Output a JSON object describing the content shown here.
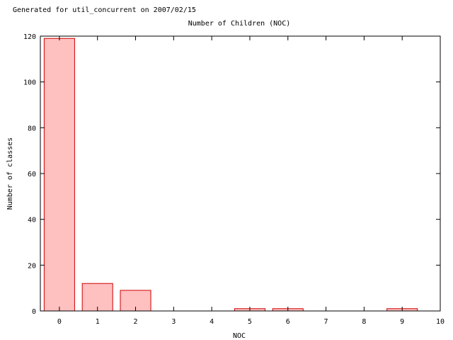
{
  "header": {
    "generated_note": "Generated for util_concurrent on 2007/02/15"
  },
  "chart_data": {
    "type": "bar",
    "title": "Number of Children (NOC)",
    "xlabel": "NOC",
    "ylabel": "Number of classes",
    "x": [
      0,
      1,
      2,
      3,
      4,
      5,
      6,
      7,
      8,
      9
    ],
    "values": [
      119,
      12,
      9,
      0,
      0,
      1,
      1,
      0,
      0,
      1
    ],
    "xlim": [
      -0.5,
      10
    ],
    "ylim": [
      0,
      120
    ],
    "x_ticks": [
      "0",
      "1",
      "2",
      "3",
      "4",
      "5",
      "6",
      "7",
      "8",
      "9",
      "10"
    ],
    "y_ticks": [
      "0",
      "20",
      "40",
      "60",
      "80",
      "100",
      "120"
    ],
    "grid": false,
    "legend": "none",
    "colors": {
      "bar_fill": "#ffc0c0",
      "bar_edge": "#cc0000",
      "axis": "#000000"
    }
  }
}
